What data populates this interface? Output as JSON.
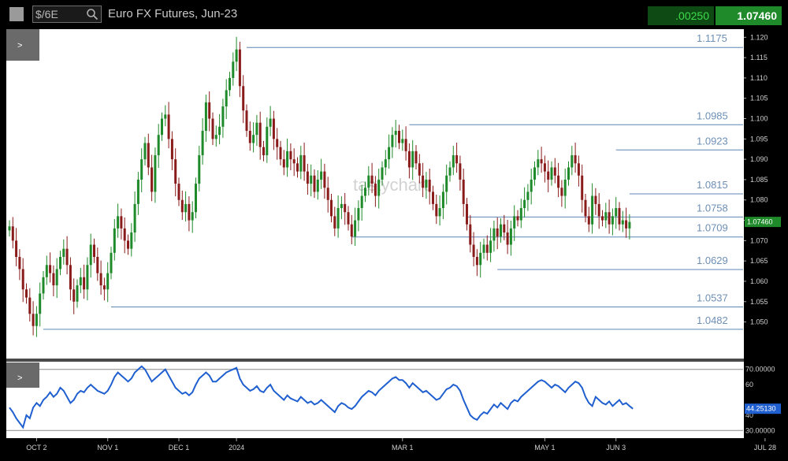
{
  "header": {
    "symbol": "$/6E",
    "title": "Euro FX Futures, Jun-23",
    "change": ".00250",
    "price": "1.07460"
  },
  "colors": {
    "up": "#1f8a2a",
    "down": "#8a1b1b",
    "level_line": "#5f86b3",
    "level_label": "#6d8fb5",
    "rsi_line": "#1f5fd0",
    "price_marker": "#1f8a2a",
    "rsi_marker": "#1f5fd0"
  },
  "panel_toggle": ">",
  "watermark": "tastychart",
  "chart_data": [
    {
      "type": "candlestick",
      "title": "Euro FX Futures, Jun-23",
      "ylim": [
        1.041,
        1.122
      ],
      "y_ticks": [
        "1.120",
        "1.115",
        "1.110",
        "1.105",
        "1.100",
        "1.095",
        "1.090",
        "1.085",
        "1.080",
        "1.075",
        "1.070",
        "1.065",
        "1.060",
        "1.055",
        "1.050"
      ],
      "y_tick_values": [
        1.12,
        1.115,
        1.11,
        1.105,
        1.1,
        1.095,
        1.09,
        1.085,
        1.08,
        1.075,
        1.07,
        1.065,
        1.06,
        1.055,
        1.05
      ],
      "x_labels": [
        "OCT 2",
        "NOV 1",
        "DEC 1",
        "2024",
        "MAR 1",
        "MAY 1",
        "JUN 3",
        "JUL 28"
      ],
      "x_label_index": [
        8,
        29,
        50,
        67,
        116,
        158,
        179,
        223
      ],
      "levels": [
        {
          "label": "1.1175",
          "value": 1.1175,
          "from": 70
        },
        {
          "label": "1.0985",
          "value": 1.0985,
          "from": 118
        },
        {
          "label": "1.0923",
          "value": 1.0923,
          "from": 179
        },
        {
          "label": "1.0815",
          "value": 1.0815,
          "from": 183
        },
        {
          "label": "1.0758",
          "value": 1.0758,
          "from": 135
        },
        {
          "label": "1.0709",
          "value": 1.0709,
          "from": 101
        },
        {
          "label": "1.0629",
          "value": 1.0629,
          "from": 144
        },
        {
          "label": "1.0537",
          "value": 1.0537,
          "from": 30
        },
        {
          "label": "1.0482",
          "value": 1.0482,
          "from": 10
        }
      ],
      "current_price_label": "1.07460",
      "current_price": 1.0746,
      "closes": [
        1.0735,
        1.07,
        1.066,
        1.063,
        1.058,
        1.056,
        1.052,
        1.049,
        1.052,
        1.057,
        1.061,
        1.064,
        1.062,
        1.059,
        1.063,
        1.066,
        1.068,
        1.064,
        1.058,
        1.055,
        1.059,
        1.061,
        1.058,
        1.064,
        1.069,
        1.066,
        1.062,
        1.059,
        1.058,
        1.062,
        1.067,
        1.073,
        1.076,
        1.073,
        1.07,
        1.068,
        1.072,
        1.079,
        1.085,
        1.09,
        1.094,
        1.088,
        1.082,
        1.091,
        1.096,
        1.1,
        1.101,
        1.095,
        1.09,
        1.084,
        1.08,
        1.077,
        1.079,
        1.075,
        1.077,
        1.084,
        1.091,
        1.097,
        1.104,
        1.1,
        1.095,
        1.096,
        1.098,
        1.103,
        1.107,
        1.11,
        1.114,
        1.117,
        1.108,
        1.102,
        1.097,
        1.094,
        1.096,
        1.099,
        1.093,
        1.091,
        1.098,
        1.1,
        1.095,
        1.093,
        1.09,
        1.088,
        1.092,
        1.09,
        1.089,
        1.087,
        1.091,
        1.087,
        1.084,
        1.086,
        1.082,
        1.085,
        1.087,
        1.083,
        1.08,
        1.076,
        1.073,
        1.078,
        1.079,
        1.077,
        1.074,
        1.071,
        1.075,
        1.078,
        1.081,
        1.083,
        1.086,
        1.084,
        1.081,
        1.085,
        1.088,
        1.09,
        1.093,
        1.096,
        1.097,
        1.094,
        1.095,
        1.092,
        1.088,
        1.092,
        1.089,
        1.086,
        1.083,
        1.085,
        1.082,
        1.079,
        1.076,
        1.078,
        1.082,
        1.086,
        1.088,
        1.091,
        1.089,
        1.085,
        1.079,
        1.074,
        1.069,
        1.066,
        1.064,
        1.067,
        1.069,
        1.067,
        1.07,
        1.073,
        1.071,
        1.074,
        1.072,
        1.069,
        1.073,
        1.076,
        1.075,
        1.078,
        1.08,
        1.082,
        1.085,
        1.088,
        1.09,
        1.089,
        1.087,
        1.085,
        1.088,
        1.086,
        1.083,
        1.081,
        1.085,
        1.088,
        1.091,
        1.089,
        1.086,
        1.08,
        1.076,
        1.074,
        1.081,
        1.079,
        1.076,
        1.075,
        1.077,
        1.074,
        1.076,
        1.078,
        1.074,
        1.075,
        1.073,
        1.0746
      ],
      "rsi": {
        "ylim": [
          25,
          75
        ],
        "ticks": [
          "70.00000",
          "60",
          "40",
          "30.00000"
        ],
        "tick_values": [
          70,
          60,
          40,
          30
        ],
        "bands": [
          70,
          30
        ],
        "current_label": "44.25130",
        "current": 44.2513,
        "values": [
          45,
          42,
          38,
          35,
          32,
          40,
          38,
          45,
          48,
          46,
          50,
          52,
          55,
          52,
          54,
          58,
          56,
          52,
          48,
          50,
          54,
          56,
          55,
          58,
          60,
          58,
          56,
          55,
          54,
          56,
          60,
          65,
          68,
          66,
          64,
          62,
          64,
          68,
          70,
          72,
          70,
          66,
          62,
          64,
          66,
          68,
          70,
          66,
          62,
          58,
          56,
          54,
          55,
          53,
          55,
          60,
          64,
          66,
          68,
          66,
          62,
          62,
          64,
          66,
          68,
          69,
          70,
          71,
          64,
          60,
          58,
          56,
          57,
          59,
          56,
          55,
          58,
          60,
          56,
          54,
          52,
          50,
          53,
          51,
          50,
          49,
          52,
          50,
          48,
          49,
          47,
          48,
          50,
          48,
          46,
          44,
          42,
          46,
          48,
          47,
          45,
          44,
          46,
          49,
          52,
          54,
          56,
          55,
          53,
          56,
          58,
          60,
          62,
          64,
          65,
          63,
          63,
          61,
          58,
          61,
          59,
          57,
          55,
          56,
          54,
          52,
          50,
          51,
          54,
          57,
          58,
          60,
          59,
          56,
          50,
          45,
          40,
          38,
          37,
          40,
          42,
          41,
          44,
          47,
          45,
          48,
          46,
          44,
          48,
          50,
          49,
          52,
          54,
          56,
          58,
          60,
          62,
          63,
          62,
          60,
          58,
          60,
          59,
          57,
          55,
          58,
          60,
          62,
          61,
          58,
          52,
          48,
          46,
          52,
          50,
          48,
          47,
          49,
          46,
          48,
          50,
          47,
          48,
          46,
          44.25
        ]
      }
    }
  ]
}
